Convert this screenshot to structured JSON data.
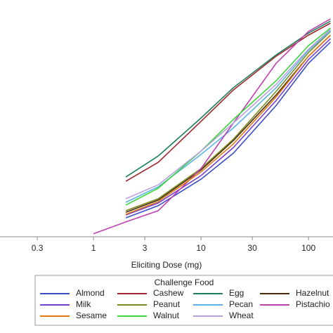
{
  "chart_data": {
    "type": "line",
    "xlabel": "Eliciting Dose (mg)",
    "xscale": "log",
    "xlim": [
      0.135,
      169
    ],
    "xticks": [
      0.3,
      1,
      3,
      10,
      30,
      100
    ],
    "ylim": [
      0,
      100
    ],
    "legend_title": "Challenge Food",
    "legend_position": "bottom",
    "series": [
      {
        "name": "Almond",
        "color": "#3b4fc4",
        "x": [
          2,
          4,
          10,
          20,
          50,
          100,
          160
        ],
        "values": [
          8.4,
          13.8,
          25.6,
          37.2,
          58.4,
          77.2,
          86.6
        ]
      },
      {
        "name": "Cashew",
        "color": "#a0282e",
        "x": [
          2,
          4,
          10,
          20,
          50,
          100,
          160
        ],
        "values": [
          24.7,
          33.1,
          51.3,
          65.3,
          80.3,
          89.7,
          95
        ]
      },
      {
        "name": "Egg",
        "color": "#1a7f5a",
        "x": [
          2,
          4,
          10,
          20,
          50,
          100,
          160
        ],
        "values": [
          26.6,
          35.9,
          52.8,
          66.3,
          80.9,
          90.6,
          95.9
        ]
      },
      {
        "name": "Hazelnut",
        "color": "#4a2a0a",
        "x": [
          2,
          4,
          10,
          20,
          50,
          100,
          160
        ],
        "values": [
          10.9,
          16.3,
          29.7,
          42.8,
          63.1,
          80.3,
          89.7
        ]
      },
      {
        "name": "Milk",
        "color": "#7b3fd0",
        "x": [
          2,
          4,
          10,
          20,
          50,
          100,
          160
        ],
        "values": [
          9.7,
          15,
          27.2,
          39.7,
          60.6,
          78.8,
          88.1
        ]
      },
      {
        "name": "Peanut",
        "color": "#7a8a1e",
        "x": [
          2,
          4,
          10,
          20,
          50,
          100,
          160
        ],
        "values": [
          11.6,
          16.9,
          30.3,
          43.4,
          64.7,
          81.9,
          91.3
        ]
      },
      {
        "name": "Pecan",
        "color": "#5ab4e6",
        "x": [
          2,
          4,
          10,
          20,
          50,
          100,
          160
        ],
        "values": [
          15.3,
          22.2,
          36.6,
          48.4,
          66.3,
          82.8,
          91.6
        ]
      },
      {
        "name": "Pistachio",
        "color": "#c040b0",
        "x": [
          1,
          2,
          4,
          10,
          20,
          50,
          100,
          160
        ],
        "values": [
          1.3,
          6.6,
          11.6,
          30.3,
          50.6,
          77.2,
          91.3,
          96.9
        ]
      },
      {
        "name": "Sesame",
        "color": "#e07a10",
        "x": [
          2,
          4,
          10,
          20,
          50,
          100,
          160
        ],
        "values": [
          10,
          15.6,
          28.8,
          41.3,
          62.2,
          80.3,
          89.7
        ]
      },
      {
        "name": "Walnut",
        "color": "#3ad63a",
        "x": [
          2,
          4,
          10,
          20,
          50,
          100,
          160
        ],
        "values": [
          14.1,
          21.6,
          38.1,
          52.2,
          69.4,
          85,
          92.8
        ]
      },
      {
        "name": "Wheat",
        "color": "#b8a0e0",
        "x": [
          2,
          4,
          10,
          20,
          50,
          100,
          160
        ],
        "values": [
          16.9,
          23.1,
          38.1,
          50.6,
          67.8,
          83.4,
          92.2
        ]
      }
    ]
  }
}
